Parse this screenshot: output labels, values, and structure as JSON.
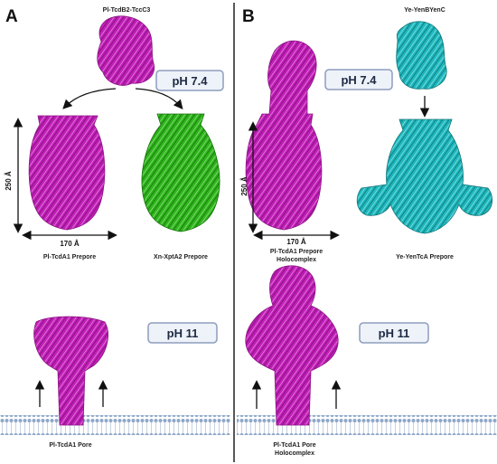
{
  "panels": {
    "a": {
      "label": "A",
      "complex_caption": "Pl-TcdB2-TccC3",
      "ph_neutral": "pH 7.4",
      "ph_alkaline": "pH 11",
      "height_dim": "250 Å",
      "width_dim": "170 Å",
      "prepore1_caption": "Pl-TcdA1 Prepore",
      "prepore2_caption": "Xn-XptA2 Prepore",
      "pore_caption": "Pl-TcdA1 Pore"
    },
    "b": {
      "label": "B",
      "complex_caption": "Ye-YenBYenC",
      "ph_neutral": "pH 7.4",
      "ph_alkaline": "pH 11",
      "height_dim": "250 Å",
      "width_dim": "170 Å",
      "holo_caption_line1": "Pl-TcdA1 Prepore",
      "holo_caption_line2": "Holocomplex",
      "yen_caption": "Ye-YenTcA Prepore",
      "pore_caption_line1": "Pl-TcdA1 Pore",
      "pore_caption_line2": "Holocomplex"
    }
  },
  "colors": {
    "magenta": "#c21fb8",
    "green": "#2fb51c",
    "cyan": "#1fb8bd",
    "membrane": "#8ea7c9",
    "ph_box_fill": "#eef2f9",
    "ph_box_stroke": "#8d9dbd"
  }
}
